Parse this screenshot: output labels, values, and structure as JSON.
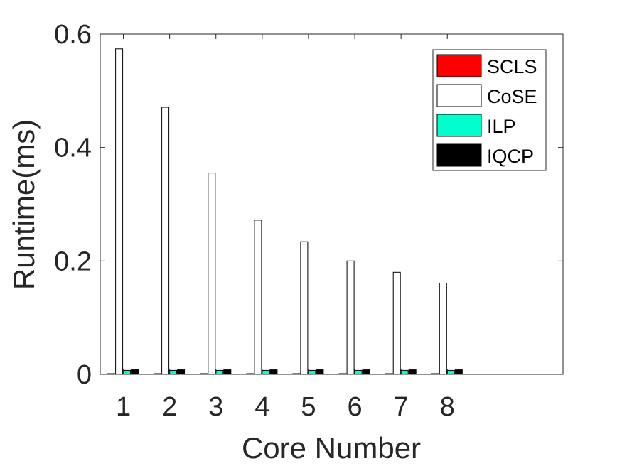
{
  "chart_data": {
    "type": "bar",
    "xlabel": "Core Number",
    "ylabel": "Runtime(ms)",
    "categories": [
      "1",
      "2",
      "3",
      "4",
      "5",
      "6",
      "7",
      "8"
    ],
    "xlim": [
      0.5,
      10.5
    ],
    "ylim": [
      0,
      0.6
    ],
    "yticks": [
      "0",
      "0.2",
      "0.4",
      "0.6"
    ],
    "grid": false,
    "legend_position": "top-right",
    "series": [
      {
        "name": "SCLS",
        "color": "#ff0000",
        "values": [
          0.001,
          0.001,
          0.001,
          0.001,
          0.001,
          0.001,
          0.001,
          0.001
        ]
      },
      {
        "name": "CoSE",
        "color": "#ffffff",
        "values": [
          0.574,
          0.471,
          0.355,
          0.272,
          0.234,
          0.2,
          0.18,
          0.161
        ]
      },
      {
        "name": "ILP",
        "color": "#00ffcc",
        "values": [
          0.007,
          0.007,
          0.007,
          0.007,
          0.007,
          0.007,
          0.007,
          0.007
        ]
      },
      {
        "name": "IQCP",
        "color": "#000000",
        "values": [
          0.008,
          0.008,
          0.008,
          0.008,
          0.008,
          0.008,
          0.008,
          0.008
        ]
      }
    ]
  }
}
